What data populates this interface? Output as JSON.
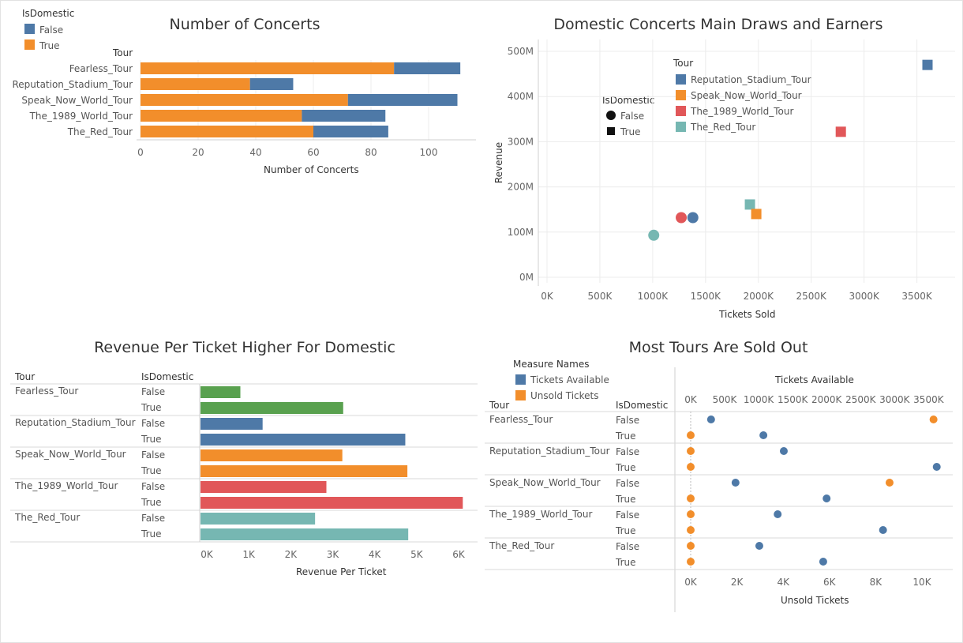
{
  "colors": {
    "blue": "#4e79a7",
    "orange": "#f28e2b",
    "red": "#e15759",
    "teal": "#76b7b2",
    "green": "#59a14f",
    "grid": "#ececec",
    "axis": "#cfcfcf"
  },
  "chart_data": [
    {
      "type": "bar",
      "title": "Number of Concerts",
      "orientation": "horizontal",
      "stacked": true,
      "row_header": "Tour",
      "categories": [
        "Fearless_Tour",
        "Reputation_Stadium_Tour",
        "Speak_Now_World_Tour",
        "The_1989_World_Tour",
        "The_Red_Tour"
      ],
      "series": [
        {
          "name": "True",
          "values": [
            88,
            38,
            72,
            56,
            60
          ]
        },
        {
          "name": "False",
          "values": [
            23,
            15,
            38,
            29,
            26
          ]
        }
      ],
      "xlabel": "Number of Concerts",
      "xlim": [
        0,
        112
      ],
      "xticks": [
        0,
        20,
        40,
        60,
        80,
        100
      ],
      "legend": {
        "title": "IsDomestic",
        "items": [
          "False",
          "True"
        ],
        "placement": "top-left"
      }
    },
    {
      "type": "scatter",
      "title": "Domestic Concerts Main Draws and Earners",
      "xlabel": "Tickets Sold",
      "ylabel": "Revenue",
      "xlim": [
        0,
        3700000
      ],
      "ylim": [
        0,
        520000000
      ],
      "xticks": [
        "0K",
        "500K",
        "1000K",
        "1500K",
        "2000K",
        "2500K",
        "3000K",
        "3500K"
      ],
      "yticks": [
        "0M",
        "100M",
        "200M",
        "300M",
        "400M",
        "500M"
      ],
      "points": [
        {
          "tour": "Reputation_Stadium_Tour",
          "domestic": "True",
          "x": 3600000,
          "y": 470000000
        },
        {
          "tour": "The_1989_World_Tour",
          "domestic": "True",
          "x": 2780000,
          "y": 322000000
        },
        {
          "tour": "The_Red_Tour",
          "domestic": "True",
          "x": 1920000,
          "y": 161000000
        },
        {
          "tour": "Speak_Now_World_Tour",
          "domestic": "True",
          "x": 1980000,
          "y": 140000000
        },
        {
          "tour": "The_1989_World_Tour",
          "domestic": "False",
          "x": 1270000,
          "y": 132000000
        },
        {
          "tour": "Reputation_Stadium_Tour",
          "domestic": "False",
          "x": 1380000,
          "y": 132000000
        },
        {
          "tour": "The_Red_Tour",
          "domestic": "False",
          "x": 1010000,
          "y": 93000000
        }
      ],
      "legend_shape": {
        "title": "IsDomestic",
        "items": [
          "False",
          "True"
        ]
      },
      "legend_color": {
        "title": "Tour",
        "items": [
          "Reputation_Stadium_Tour",
          "Speak_Now_World_Tour",
          "The_1989_World_Tour",
          "The_Red_Tour"
        ]
      }
    },
    {
      "type": "bar",
      "title": "Revenue Per Ticket Higher For Domestic",
      "orientation": "horizontal",
      "headers": [
        "Tour",
        "IsDomestic"
      ],
      "rows": [
        {
          "tour": "Fearless_Tour",
          "domestic": "False",
          "value": 950,
          "color": "green"
        },
        {
          "tour": "",
          "domestic": "True",
          "value": 3400,
          "color": "green"
        },
        {
          "tour": "Reputation_Stadium_Tour",
          "domestic": "False",
          "value": 1480,
          "color": "blue"
        },
        {
          "tour": "",
          "domestic": "True",
          "value": 4880,
          "color": "blue"
        },
        {
          "tour": "Speak_Now_World_Tour",
          "domestic": "False",
          "value": 3380,
          "color": "orange"
        },
        {
          "tour": "",
          "domestic": "True",
          "value": 4930,
          "color": "orange"
        },
        {
          "tour": "The_1989_World_Tour",
          "domestic": "False",
          "value": 3000,
          "color": "red"
        },
        {
          "tour": "",
          "domestic": "True",
          "value": 6250,
          "color": "red"
        },
        {
          "tour": "The_Red_Tour",
          "domestic": "False",
          "value": 2730,
          "color": "teal"
        },
        {
          "tour": "",
          "domestic": "True",
          "value": 4950,
          "color": "teal"
        }
      ],
      "xlabel": "Revenue Per Ticket",
      "xlim": [
        0,
        6400
      ],
      "xticks": [
        "0K",
        "1K",
        "2K",
        "3K",
        "4K",
        "5K",
        "6K"
      ]
    },
    {
      "type": "scatter",
      "title": "Most Tours Are Sold Out",
      "headers": [
        "Tour",
        "IsDomestic"
      ],
      "top_axis": {
        "label": "Tickets Available",
        "ticks": [
          "0K",
          "500K",
          "1000K",
          "1500K",
          "2000K",
          "2500K",
          "3000K",
          "3500K"
        ],
        "range": [
          0,
          3600000
        ]
      },
      "bottom_axis": {
        "label": "Unsold Tickets",
        "ticks": [
          "0K",
          "2K",
          "4K",
          "6K",
          "8K",
          "10K"
        ],
        "range": [
          0,
          11000
        ]
      },
      "legend": {
        "title": "Measure Names",
        "items": [
          "Tickets Available",
          "Unsold Tickets"
        ]
      },
      "rows": [
        {
          "tour": "Fearless_Tour",
          "domestic": "False",
          "tickets_available": 300000,
          "unsold_tickets": 10500
        },
        {
          "tour": "",
          "domestic": "True",
          "tickets_available": 1070000,
          "unsold_tickets": 0
        },
        {
          "tour": "Reputation_Stadium_Tour",
          "domestic": "False",
          "tickets_available": 1370000,
          "unsold_tickets": 0
        },
        {
          "tour": "",
          "domestic": "True",
          "tickets_available": 3620000,
          "unsold_tickets": 0
        },
        {
          "tour": "Speak_Now_World_Tour",
          "domestic": "False",
          "tickets_available": 660000,
          "unsold_tickets": 8600
        },
        {
          "tour": "",
          "domestic": "True",
          "tickets_available": 2000000,
          "unsold_tickets": 0
        },
        {
          "tour": "The_1989_World_Tour",
          "domestic": "False",
          "tickets_available": 1280000,
          "unsold_tickets": 0
        },
        {
          "tour": "",
          "domestic": "True",
          "tickets_available": 2830000,
          "unsold_tickets": 0
        },
        {
          "tour": "The_Red_Tour",
          "domestic": "False",
          "tickets_available": 1010000,
          "unsold_tickets": 0
        },
        {
          "tour": "",
          "domestic": "True",
          "tickets_available": 1950000,
          "unsold_tickets": 0
        }
      ]
    }
  ]
}
